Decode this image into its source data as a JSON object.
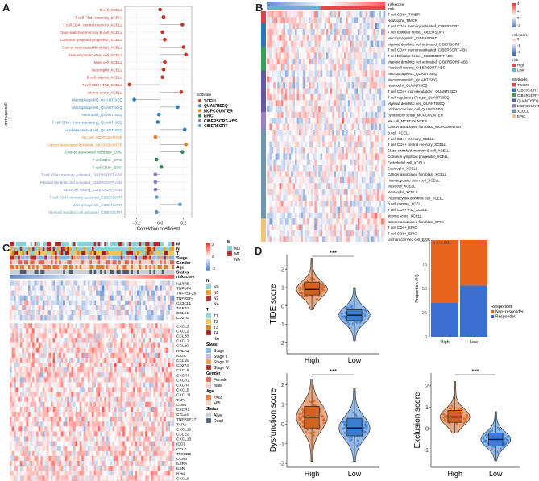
{
  "panels": {
    "a": "A",
    "b": "B",
    "c": "C",
    "d": "D"
  },
  "chart_data": [
    {
      "type": "scatter",
      "panel": "A",
      "ylabel": "Immune cell",
      "xlabel": "Correlation coefficient",
      "xticks": [
        "-0.2",
        "0.0",
        "0.2"
      ],
      "xlim": [
        -0.3,
        0.27
      ],
      "legend_title": "Software",
      "legend": [
        {
          "name": "XCELL",
          "color": "#c0392b"
        },
        {
          "name": "QUANTISEQ",
          "color": "#2e7fc2"
        },
        {
          "name": "MCPCOUNTER",
          "color": "#e67e22"
        },
        {
          "name": "EPIC",
          "color": "#2e8b57"
        },
        {
          "name": "CIBERSORT-ABS",
          "color": "#7b7fc4"
        },
        {
          "name": "CIBERSORT",
          "color": "#5aa1b8"
        }
      ],
      "points": [
        {
          "label": "B cell_XCELL",
          "x": 0.0,
          "s": 0
        },
        {
          "label": "T cell CD4+ memory_XCELL",
          "x": 0.03,
          "s": 0
        },
        {
          "label": "T cell CD4+ central memory_XCELL",
          "x": 0.19,
          "s": 0
        },
        {
          "label": "Class-switched memory B cell_XCELL",
          "x": 0.02,
          "s": 0
        },
        {
          "label": "Common lymphoid progenitor_XCELL",
          "x": 0.04,
          "s": 0
        },
        {
          "label": "Cancer associated fibroblast_XCELL",
          "x": 0.2,
          "s": 0
        },
        {
          "label": "Hematopoietic stem cell_XCELL",
          "x": 0.22,
          "s": 0
        },
        {
          "label": "Mast cell_XCELL",
          "x": 0.04,
          "s": 0
        },
        {
          "label": "Neutrophil_XCELL",
          "x": 0.03,
          "s": 0
        },
        {
          "label": "B cell plasma_XCELL",
          "x": 0.02,
          "s": 0
        },
        {
          "label": "T cell CD4+ Th2_XCELL",
          "x": -0.26,
          "s": 0
        },
        {
          "label": "stroma score_XCELL",
          "x": 0.18,
          "s": 0
        },
        {
          "label": "Macrophage M1_QUANTISEQ",
          "x": -0.22,
          "s": 1
        },
        {
          "label": "Macrophage M2_QUANTISEQ",
          "x": 0.15,
          "s": 1
        },
        {
          "label": "Neutrophil_QUANTISEQ",
          "x": -0.01,
          "s": 1
        },
        {
          "label": "T cell CD4+ (non-regulatory)_QUANTISEQ",
          "x": -0.02,
          "s": 1
        },
        {
          "label": "uncharacterized cell_QUANTISEQ",
          "x": 0.21,
          "s": 1
        },
        {
          "label": "NK cell_MCPCOUNTER",
          "x": -0.04,
          "s": 2
        },
        {
          "label": "Cancer associated fibroblast_MCPCOUNTER",
          "x": 0.22,
          "s": 2
        },
        {
          "label": "Cancer associated fibroblast_EPIC",
          "x": 0.19,
          "s": 3
        },
        {
          "label": "T cell CD4+_EPIC",
          "x": -0.03,
          "s": 3
        },
        {
          "label": "T cell CD8+_EPIC",
          "x": 0.01,
          "s": 3
        },
        {
          "label": "T cell CD4+ memory activated_CIBERSORT-ABS",
          "x": -0.04,
          "s": 4
        },
        {
          "label": "Myeloid dendritic cell activated_CIBERSORT-ABS",
          "x": -0.04,
          "s": 4
        },
        {
          "label": "Mast cell resting_CIBERSORT-ABS",
          "x": -0.04,
          "s": 4
        },
        {
          "label": "T cell CD4+ memory activated_CIBERSORT",
          "x": -0.03,
          "s": 5
        },
        {
          "label": "Macrophage M0_CIBERSORT",
          "x": 0.17,
          "s": 5
        },
        {
          "label": "Myeloid dendritic cell activated_CIBERSORT",
          "x": -0.03,
          "s": 5
        }
      ]
    },
    {
      "type": "heatmap",
      "panel": "B",
      "annotation_label": "riskscore",
      "annotation2_label": "risk",
      "rows": [
        {
          "label": "T cell CD8+_TIMER",
          "m": 0
        },
        {
          "label": "Neutrophil_TIMER",
          "m": 0
        },
        {
          "label": "T cell CD4+ memory activated_CIBERSORT",
          "m": 1
        },
        {
          "label": "T cell follicular helper_CIBERSORT",
          "m": 1
        },
        {
          "label": "Macrophage M2_CIBERSORT",
          "m": 1
        },
        {
          "label": "Myeloid dendritic cell activated_CIBERSORT",
          "m": 1
        },
        {
          "label": "T cell CD4+ memory activated_CIBERSORT-ABS",
          "m": 2
        },
        {
          "label": "T cell follicular helper_CIBERSORT-ABS",
          "m": 2
        },
        {
          "label": "Myeloid dendritic cell activated_CIBERSORT-ABS",
          "m": 2
        },
        {
          "label": "Mast cell resting_CIBERSORT-ABS",
          "m": 2
        },
        {
          "label": "Macrophage M1_QUANTISEQ",
          "m": 3
        },
        {
          "label": "Macrophage M2_QUANTISEQ",
          "m": 3
        },
        {
          "label": "Neutrophil_QUANTISEQ",
          "m": 3
        },
        {
          "label": "T cell CD4+ (non-regulatory)_QUANTISEQ",
          "m": 3
        },
        {
          "label": "T cell regulatory (Tregs)_QUANTISEQ",
          "m": 3
        },
        {
          "label": "Myeloid dendritic cell_QUANTISEQ",
          "m": 3
        },
        {
          "label": "uncharacterized cell_QUANTISEQ",
          "m": 3
        },
        {
          "label": "cytotoxicity score_MCPCOUNTER",
          "m": 4
        },
        {
          "label": "NK cell_MCPCOUNTER",
          "m": 4
        },
        {
          "label": "Cancer associated fibroblast_MCPCOUNTER",
          "m": 4
        },
        {
          "label": "B cell_XCELL",
          "m": 5
        },
        {
          "label": "T cell CD4+ memory_XCELL",
          "m": 5
        },
        {
          "label": "T cell CD4+ central memory_XCELL",
          "m": 5
        },
        {
          "label": "Class-switched memory B cell_XCELL",
          "m": 5
        },
        {
          "label": "Common lymphoid progenitor_XCELL",
          "m": 5
        },
        {
          "label": "Endothelial cell_XCELL",
          "m": 5
        },
        {
          "label": "Eosinophil_XCELL",
          "m": 5
        },
        {
          "label": "Cancer associated fibroblast_XCELL",
          "m": 5
        },
        {
          "label": "Hematopoietic stem cell_XCELL",
          "m": 5
        },
        {
          "label": "Mast cell_XCELL",
          "m": 5
        },
        {
          "label": "Neutrophil_XCELL",
          "m": 5
        },
        {
          "label": "Plasmacytoid dendritic cell_XCELL",
          "m": 5
        },
        {
          "label": "B cell plasma_XCELL",
          "m": 5
        },
        {
          "label": "T cell CD4+ Th2_XCELL",
          "m": 5
        },
        {
          "label": "stroma score_XCELL",
          "m": 5
        },
        {
          "label": "Cancer associated fibroblast_EPIC",
          "m": 6
        },
        {
          "label": "T cell CD4+_EPIC",
          "m": 6
        },
        {
          "label": "T cell CD8+_EPIC",
          "m": 6
        },
        {
          "label": "uncharacterized cell_EPIC",
          "m": 6
        }
      ],
      "scale_ticks": [
        "4",
        "2",
        "0",
        "-2"
      ],
      "scale2_ticks": [
        "4",
        "2",
        "0",
        "-2"
      ],
      "legend_riskscore_title": "riskscore",
      "legend_riskscore_ticks": [
        "0",
        "-1",
        "-2"
      ],
      "legend_risk_title": "risk",
      "legend_risk": [
        {
          "name": "High",
          "color": "#e8444a"
        },
        {
          "name": "Low",
          "color": "#6aaed6"
        }
      ],
      "legend_methods_title": "Methods",
      "methods": [
        {
          "name": "TIMER",
          "color": "#e0434b"
        },
        {
          "name": "CIBERSORT",
          "color": "#2f78b4"
        },
        {
          "name": "CIBERSORT-ABS",
          "color": "#34a05a"
        },
        {
          "name": "QUANTISEQ",
          "color": "#65599f"
        },
        {
          "name": "MCPCOUNTER",
          "color": "#9a82c4"
        },
        {
          "name": "XCELL",
          "color": "#6f95b0"
        },
        {
          "name": "EPIC",
          "color": "#f2c47a"
        }
      ]
    },
    {
      "type": "heatmap",
      "panel": "C",
      "annotation_tracks": [
        "M",
        "N",
        "T",
        "Stage",
        "Gender",
        "Age",
        "Status",
        "riskscore"
      ],
      "genes": [
        "IL10RB",
        "TNFSF4",
        "TNFRSF25",
        "TNFRSF4",
        "CX3CL1",
        "TGFB1",
        "CCL21",
        "CD276",
        "CXCL3",
        "CXCL2",
        "CCL28",
        "CXCL1",
        "CCL20",
        "HHLA2",
        "ICOS",
        "CCL15",
        "CD274",
        "CXCL9",
        "CXCR6",
        "CXCR2",
        "CXCR6",
        "CXCL5",
        "CXCL11",
        "TAP1",
        "CD96",
        "CXCR1",
        "CTLA4",
        "TNFRSF17",
        "TAP2",
        "CXCL10",
        "CCL22",
        "CXCL13",
        "IDO1",
        "CCL4",
        "TMIGD2",
        "CCR4",
        "IL2RA",
        "IL6R",
        "B2M",
        "CXCL9",
        "TNFSF9"
      ],
      "scale_ticks": [
        "2",
        "0",
        "-2"
      ],
      "legend": {
        "M": {
          "title": "M",
          "items": [
            {
              "name": "M0",
              "color": "#8fd0d8"
            },
            {
              "name": "M1",
              "color": "#b22a2a"
            },
            {
              "name": "NA",
              "color": "#ffffff"
            }
          ]
        },
        "N": {
          "title": "N",
          "items": [
            {
              "name": "N0",
              "color": "#8fd0d8"
            },
            {
              "name": "N1",
              "color": "#f2a024"
            },
            {
              "name": "N2",
              "color": "#b22a2a"
            },
            {
              "name": "NA",
              "color": "#ffffff"
            }
          ]
        },
        "T": {
          "title": "T",
          "items": [
            {
              "name": "T1",
              "color": "#8fd0d8"
            },
            {
              "name": "T2",
              "color": "#ecc85c"
            },
            {
              "name": "T3",
              "color": "#d48a2c"
            },
            {
              "name": "T4",
              "color": "#a02424"
            },
            {
              "name": "NA",
              "color": "#ffffff"
            }
          ]
        },
        "Stage": {
          "title": "Stage",
          "items": [
            {
              "name": "Stage I",
              "color": "#7fb6df"
            },
            {
              "name": "Stage II",
              "color": "#c9b8de"
            },
            {
              "name": "Stage III",
              "color": "#f0a050"
            },
            {
              "name": "Stage IV",
              "color": "#b02a2a"
            }
          ]
        },
        "Gender": {
          "title": "Gender",
          "items": [
            {
              "name": "Female",
              "color": "#d86b58"
            },
            {
              "name": "Male",
              "color": "#f3cfc4"
            }
          ]
        },
        "Age": {
          "title": "Age",
          "items": [
            {
              "name": "<=65",
              "color": "#e8773a"
            },
            {
              "name": ">65",
              "color": "#f6d8bb"
            }
          ]
        },
        "Status": {
          "title": "Status",
          "items": [
            {
              "name": "Alive",
              "color": "#c9cfd8"
            },
            {
              "name": "Dead",
              "color": "#4d5b73"
            }
          ]
        }
      }
    },
    {
      "type": "box",
      "panel": "D",
      "ylabel": "TIDE score",
      "categories": [
        "High",
        "Low"
      ],
      "significance": "***",
      "yticks": [
        "2",
        "1",
        "0",
        "-1",
        "-2"
      ],
      "medians": [
        0.9,
        -0.5
      ],
      "q1": [
        0.6,
        -0.8
      ],
      "q3": [
        1.3,
        -0.2
      ],
      "whisker_low": [
        -0.2,
        -1.9
      ],
      "whisker_high": [
        2.6,
        1.0
      ],
      "colors": [
        "#d4611f",
        "#3a7dd1"
      ]
    },
    {
      "type": "bar",
      "panel": "D",
      "ylabel": "Proportion (%)",
      "categories": [
        "High",
        "Low"
      ],
      "annotation": "p < 0.001",
      "yticks": [
        "100",
        "75",
        "50",
        "25",
        "0"
      ],
      "series": [
        {
          "name": "Non−responder",
          "color": "#e8641f",
          "values": [
            65,
            47
          ]
        },
        {
          "name": "Responder",
          "color": "#3b6fd2",
          "values": [
            35,
            53
          ]
        }
      ],
      "legend_title": "Responder"
    },
    {
      "type": "box",
      "panel": "D",
      "ylabel": "Dysfunction score",
      "categories": [
        "High",
        "Low"
      ],
      "significance": "***",
      "yticks": [
        "2",
        "1",
        "0",
        "-1",
        "-2"
      ],
      "medians": [
        0.35,
        -0.2
      ],
      "q1": [
        -0.2,
        -0.6
      ],
      "q3": [
        0.9,
        0.3
      ],
      "whisker_low": [
        -1.9,
        -1.9
      ],
      "whisker_high": [
        2.3,
        1.8
      ],
      "colors": [
        "#d4611f",
        "#3a7dd1"
      ]
    },
    {
      "type": "box",
      "panel": "D",
      "ylabel": "Exclusion score",
      "categories": [
        "High",
        "Low"
      ],
      "significance": "***",
      "yticks": [
        "2",
        "1",
        "0",
        "-1"
      ],
      "medians": [
        0.55,
        -0.5
      ],
      "q1": [
        0.3,
        -0.8
      ],
      "q3": [
        0.85,
        -0.2
      ],
      "whisker_low": [
        -0.2,
        -1.5
      ],
      "whisker_high": [
        2.2,
        0.8
      ],
      "colors": [
        "#d4611f",
        "#3a7dd1"
      ]
    }
  ]
}
